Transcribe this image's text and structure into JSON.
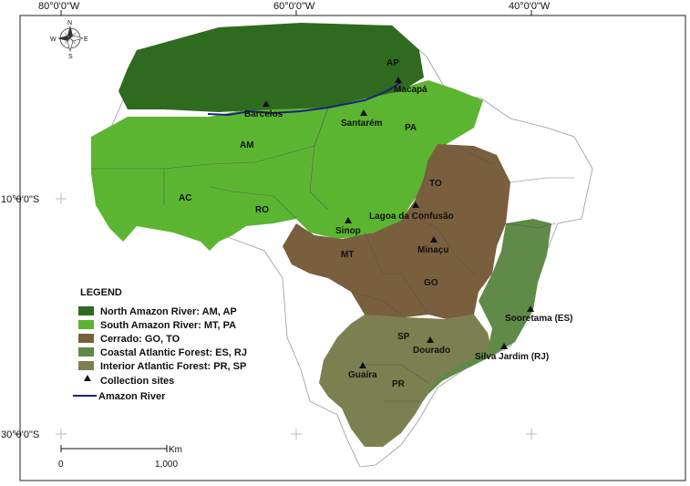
{
  "graticule": {
    "top_labels": [
      "80°0'0\"W",
      "60°0'0\"W",
      "40°0'0\"W"
    ],
    "left_labels": [
      "10°0'0\"S",
      "30°0'0\"S"
    ]
  },
  "compass": {
    "n": "N",
    "s": "S",
    "e": "E",
    "w": "W"
  },
  "legend": {
    "title": "LEGEND",
    "regions": [
      {
        "label": "North Amazon River: AM, AP",
        "color": "#2f6b1f"
      },
      {
        "label": "South Amazon River: MT, PA",
        "color": "#5cb531"
      },
      {
        "label": "Cerrado: GO, TO",
        "color": "#7a5f3e"
      },
      {
        "label": "Coastal Atlantic Forest: ES, RJ",
        "color": "#5f8a48"
      },
      {
        "label": "Interior Atlantic Forest: PR, SP",
        "color": "#7c8050"
      }
    ],
    "sites_label": "Collection sites",
    "river_label": "Amazon River",
    "river_color": "#1a237e"
  },
  "states": [
    "AP",
    "PA",
    "AM",
    "AC",
    "RO",
    "TO",
    "MT",
    "GO",
    "SP",
    "PR"
  ],
  "sites": [
    "Macapá",
    "Barcelos",
    "Santarém",
    "Lagoa da Confusão",
    "Sinop",
    "Minaçu",
    "Sooretama (ES)",
    "Dourado",
    "Silva Jardim (RJ)",
    "Guaíra"
  ],
  "scale": {
    "unit": "Km",
    "start": "0",
    "end": "1,000"
  }
}
